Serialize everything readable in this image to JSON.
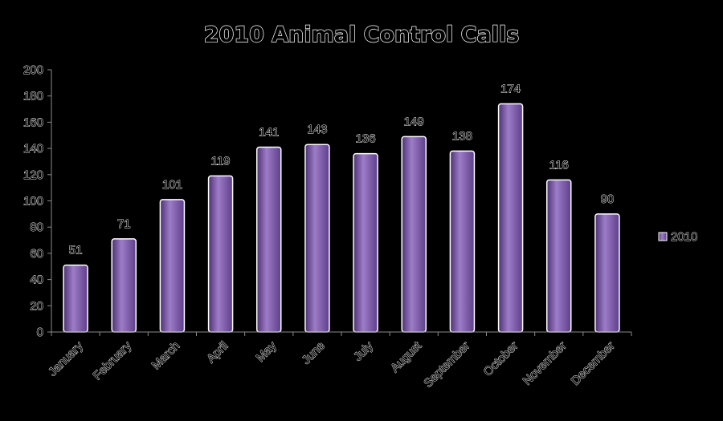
{
  "chart_data": {
    "type": "bar",
    "title": "2010 Animal Control Calls",
    "categories": [
      "January",
      "February",
      "March",
      "April",
      "May",
      "June",
      "July",
      "August",
      "September",
      "October",
      "November",
      "December"
    ],
    "series": [
      {
        "name": "2010",
        "values": [
          51,
          71,
          101,
          119,
          141,
          143,
          136,
          149,
          138,
          174,
          116,
          90
        ]
      }
    ],
    "ylim": [
      0,
      200
    ],
    "yticks": [
      0,
      20,
      40,
      60,
      80,
      100,
      120,
      140,
      160,
      180,
      200
    ],
    "data_labels": true,
    "grid": false,
    "legend_position": "right",
    "colors": {
      "bar": "#7b5aa6",
      "bar_light": "#9d7cc8",
      "bar_dark": "#4c3172",
      "bar_edge": "#ffffff",
      "background": "#000000",
      "axis": "#8a8a8a"
    }
  }
}
